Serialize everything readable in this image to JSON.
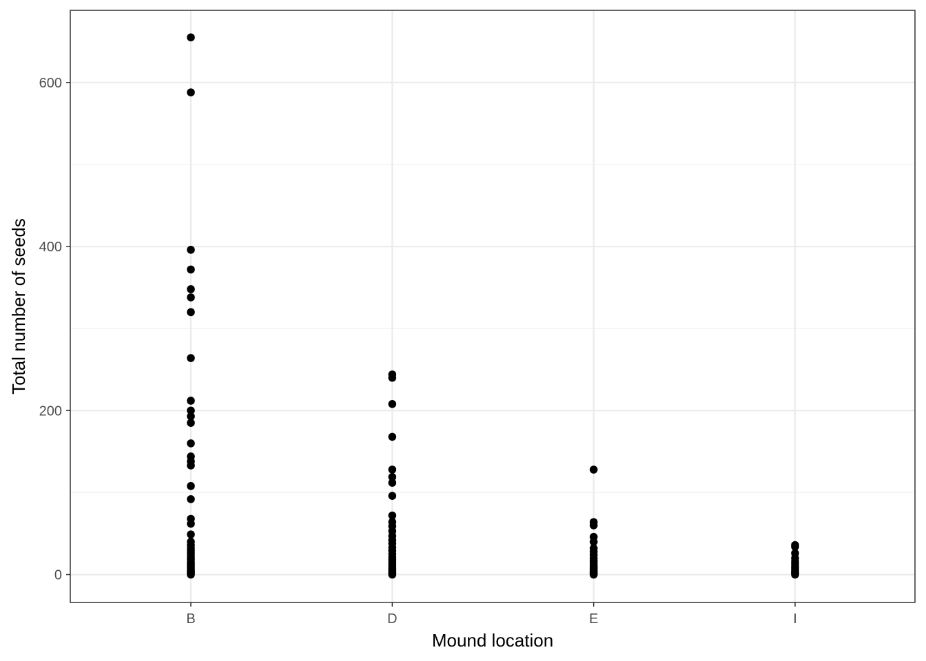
{
  "chart_data": {
    "type": "scatter",
    "title": "",
    "xlabel": "Mound location",
    "ylabel": "Total number of seeds",
    "categories": [
      "B",
      "D",
      "E",
      "I"
    ],
    "ylim": [
      -34,
      688
    ],
    "y_ticks": [
      0,
      200,
      400,
      600
    ],
    "y_minor_ticks": [
      100,
      300,
      500
    ],
    "grid": true,
    "theme": "bw",
    "point_color": "#000000",
    "series": [
      {
        "category": "B",
        "values": [
          655,
          588,
          396,
          372,
          348,
          338,
          320,
          264,
          212,
          200,
          193,
          185,
          160,
          144,
          138,
          133,
          108,
          92,
          68,
          62,
          49,
          40,
          36,
          32,
          29,
          26,
          23,
          20,
          18,
          15,
          13,
          11,
          9,
          7,
          5,
          4,
          3,
          2,
          1,
          0
        ]
      },
      {
        "category": "D",
        "values": [
          244,
          240,
          208,
          168,
          128,
          119,
          112,
          96,
          72,
          64,
          59,
          53,
          47,
          42,
          38,
          33,
          29,
          25,
          21,
          18,
          15,
          12,
          9,
          7,
          5,
          3,
          2,
          1,
          0
        ]
      },
      {
        "category": "E",
        "values": [
          128,
          64,
          60,
          46,
          40,
          32,
          28,
          24,
          20,
          17,
          14,
          11,
          9,
          7,
          5,
          3,
          2,
          1,
          0
        ]
      },
      {
        "category": "I",
        "values": [
          36,
          34,
          26,
          20,
          16,
          13,
          10,
          8,
          6,
          4,
          3,
          2,
          1,
          0
        ]
      }
    ]
  },
  "colors": {
    "panel_border": "#333333",
    "grid_major": "#ebebeb",
    "grid_minor": "#f2f2f2",
    "tick_label": "#4d4d4d",
    "axis_title": "#000000",
    "background": "#ffffff"
  }
}
